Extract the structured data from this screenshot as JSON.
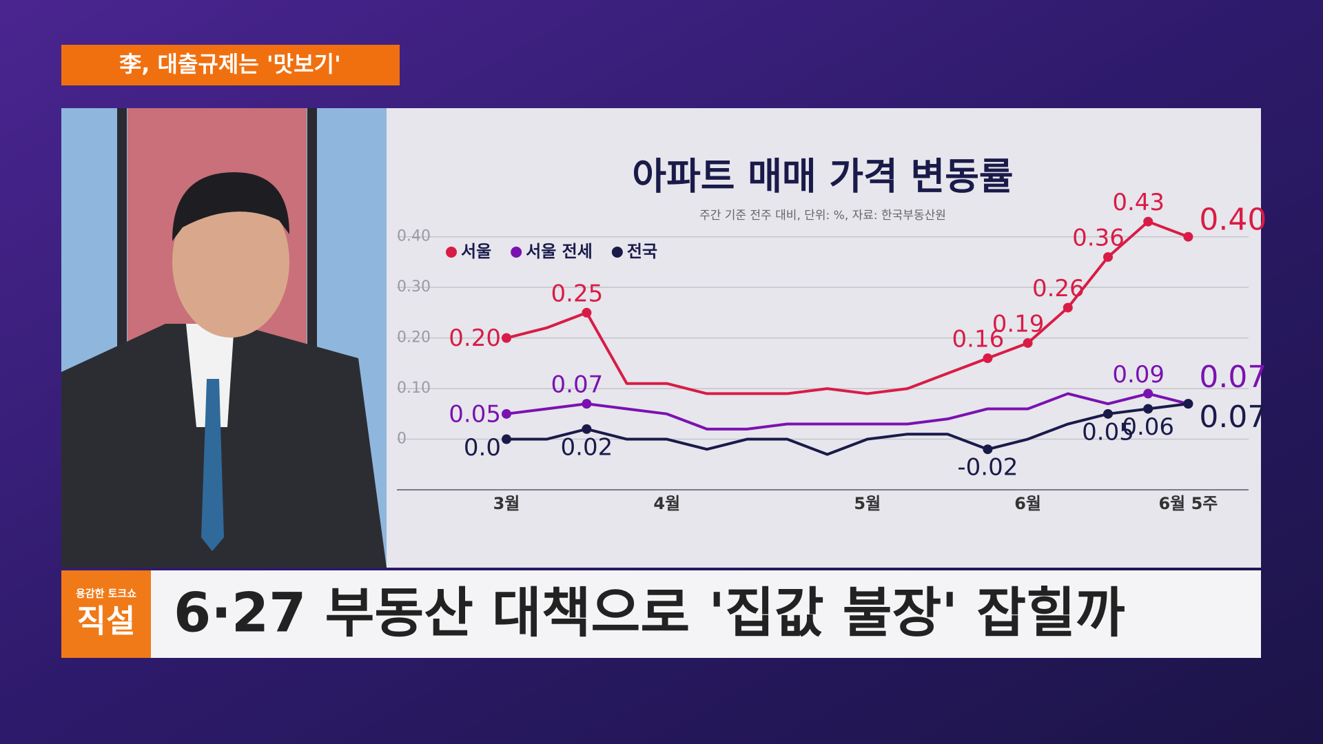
{
  "tag": "李, 대출규제는 '맛보기'",
  "logo": {
    "small": "용감한 토크쇼",
    "big": "직설"
  },
  "caption": "6·27 부동산 대책으로 '집값 불장' 잡힐까",
  "chart_data": {
    "type": "line",
    "title": "아파트 매매 가격 변동률",
    "subtitle": "주간 기준 전주 대비, 단위: %, 자료: 한국부동산원",
    "categories": [
      "3월",
      null,
      null,
      null,
      "4월",
      null,
      null,
      null,
      null,
      "5월",
      null,
      null,
      null,
      "6월",
      null,
      null,
      null,
      "6월 5주"
    ],
    "ylim": [
      -0.1,
      0.45
    ],
    "yticks": [
      0,
      {
        "value": 0.1,
        "label": "0.10"
      },
      {
        "value": 0.2,
        "label": "0.20"
      },
      {
        "value": 0.3,
        "label": "0.30"
      },
      {
        "value": 0.4,
        "label": "0.40"
      }
    ],
    "grid": true,
    "legend": "top-left",
    "series": [
      {
        "name": "서울",
        "color": "#d81c45",
        "values": [
          0.2,
          0.22,
          0.25,
          0.11,
          0.11,
          0.09,
          0.09,
          0.09,
          0.1,
          0.09,
          0.1,
          0.13,
          0.16,
          0.19,
          0.26,
          0.36,
          0.43,
          0.4
        ],
        "value_labels": [
          "0.20",
          null,
          "0.25",
          null,
          null,
          null,
          null,
          null,
          null,
          null,
          null,
          null,
          "0.16",
          "0.19",
          "0.26",
          "0.36",
          "0.43",
          "0.40"
        ]
      },
      {
        "name": "서울 전세",
        "color": "#7a12b0",
        "values": [
          0.05,
          0.06,
          0.07,
          0.06,
          0.05,
          0.02,
          0.02,
          0.03,
          0.03,
          0.03,
          0.03,
          0.04,
          0.06,
          0.06,
          0.09,
          0.07,
          0.09,
          0.07
        ],
        "value_labels": [
          "0.05",
          null,
          "0.07",
          null,
          null,
          null,
          null,
          null,
          null,
          null,
          null,
          null,
          null,
          null,
          null,
          null,
          "0.09",
          "0.07"
        ]
      },
      {
        "name": "전국",
        "color": "#1a1a4a",
        "values": [
          0,
          0,
          0.02,
          0,
          0,
          -0.02,
          0,
          0,
          -0.03,
          0,
          0.01,
          0.01,
          -0.02,
          0,
          0.03,
          0.05,
          0.06,
          0.07
        ],
        "value_labels": [
          "0.0",
          null,
          "0.02",
          null,
          null,
          null,
          null,
          null,
          null,
          null,
          null,
          null,
          "-0.02",
          null,
          null,
          "0.05",
          "0.06",
          "0.07"
        ]
      }
    ]
  }
}
